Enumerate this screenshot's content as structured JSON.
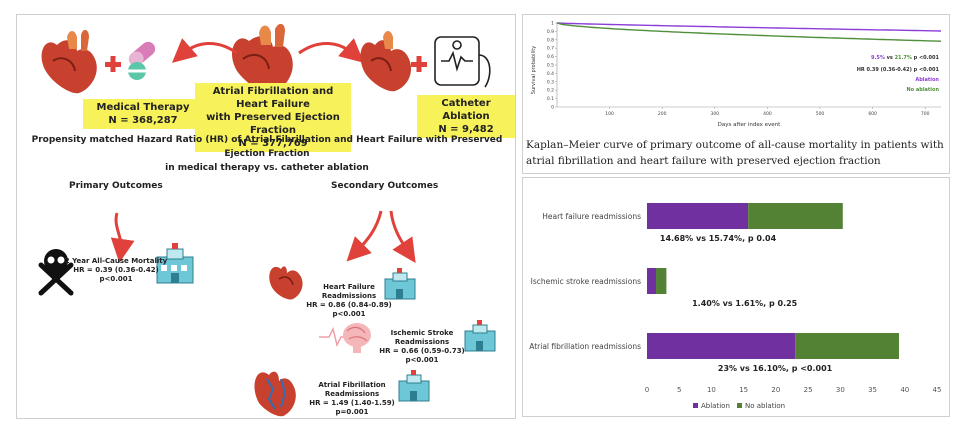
{
  "infographic": {
    "medical": {
      "title": "Medical Therapy",
      "n": "N = 368,287"
    },
    "center": {
      "line1": "Atrial Fibrillation and Heart Failure",
      "line2": "with Preserved Ejection Fraction",
      "n": "N = 377,769"
    },
    "ablation": {
      "title": "Catheter Ablation",
      "n": "N = 9,482"
    },
    "headline1": "Propensity matched Hazard Ratio (HR) of Atrial Fibrillation and Heart Failure with Preserved Ejection Fraction",
    "headline2": "in medical therapy vs. catheter ablation",
    "primary_title": "Primary Outcomes",
    "secondary_title": "Secondary Outcomes",
    "mortality": {
      "l1": "2 Year All-Cause Mortality",
      "l2": "HR = 0.39 (0.36-0.42)",
      "l3": "p<0.001"
    },
    "hf": {
      "l1": "Heart Failure Readmissions",
      "l2": "HR = 0.86 (0.84-0.89)",
      "l3": "p<0.001"
    },
    "stroke": {
      "l1": "Ischemic Stroke Readmissions",
      "l2": "HR = 0.66 (0.59-0.73)",
      "l3": "p<0.001"
    },
    "af": {
      "l1": "Atrial Fibrillation Readmissions",
      "l2": "HR = 1.49 (1.40-1.59)",
      "l3": "p=0.001"
    },
    "hospital_sign": "HOSPITAL"
  },
  "km": {
    "ylabel": "Survival probability",
    "xlabel": "Days after index event",
    "yticks": [
      "0",
      "0.1",
      "0.2",
      "0.3",
      "0.4",
      "0.5",
      "0.6",
      "0.7",
      "0.8",
      "0.9",
      "1"
    ],
    "xticks": [
      "100",
      "200",
      "300",
      "400",
      "500",
      "600",
      "700"
    ],
    "stat1": {
      "a": "9.5%",
      "vs": " vs ",
      "b": "21.7%",
      "p": " p <0.001"
    },
    "stat2": "HR 0.39 (0.36-0.42) p <0.001",
    "legend": [
      "Ablation",
      "No ablation"
    ],
    "colors": {
      "ablation": "#8c3dd6",
      "no_ablation": "#4f8f3a"
    },
    "caption": "Kaplan–Meier curve of primary outcome of all-cause mortality in patients with atrial fibrillation and heart failure with preserved ejection fraction"
  },
  "chart_data": {
    "type": "bar",
    "orientation": "horizontal",
    "stacked": true,
    "categories": [
      "Heart failure readmissions",
      "Ischemic stroke readmissions",
      "Atrial fibrillation readmissions"
    ],
    "series": [
      {
        "name": "Ablation",
        "color": "#7030a0",
        "values": [
          15.7,
          1.4,
          23
        ]
      },
      {
        "name": "No ablation",
        "color": "#548235",
        "values": [
          14.68,
          1.61,
          16.1
        ]
      }
    ],
    "annotations": [
      "14.68% vs 15.74%, p 0.04",
      "1.40% vs 1.61%, p 0.25",
      "23% vs 16.10%, p <0.001"
    ],
    "xticks": [
      "0",
      "5",
      "10",
      "15",
      "20",
      "25",
      "30",
      "35",
      "40",
      "45"
    ],
    "xlim": [
      0,
      45
    ],
    "legend_position": "bottom-left"
  }
}
